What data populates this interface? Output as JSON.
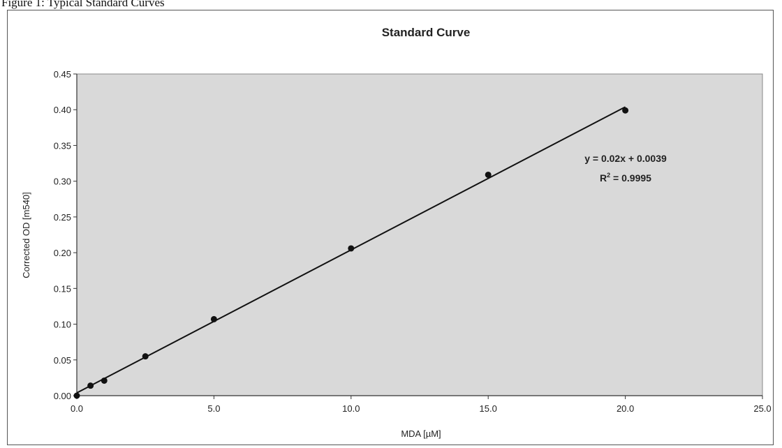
{
  "caption": "Figure 1: Typical Standard Curves",
  "chart_data": {
    "type": "scatter",
    "title": "Standard Curve",
    "xlabel": "MDA [µM]",
    "ylabel": "Corrected OD [m540]",
    "xlim": [
      0,
      25
    ],
    "ylim": [
      0,
      0.45
    ],
    "x_ticks": [
      "0.0",
      "5.0",
      "10.0",
      "15.0",
      "20.0",
      "25.0"
    ],
    "y_ticks": [
      "0.00",
      "0.05",
      "0.10",
      "0.15",
      "0.20",
      "0.25",
      "0.30",
      "0.35",
      "0.40",
      "0.45"
    ],
    "x_tick_values": [
      0,
      5,
      10,
      15,
      20,
      25
    ],
    "y_tick_values": [
      0,
      0.05,
      0.1,
      0.15,
      0.2,
      0.25,
      0.3,
      0.35,
      0.4,
      0.45
    ],
    "series": [
      {
        "x": [
          0,
          0.5,
          1,
          2.5,
          5,
          10,
          15,
          20
        ],
        "y": [
          0.0,
          0.014,
          0.021,
          0.055,
          0.107,
          0.206,
          0.309,
          0.399
        ]
      }
    ],
    "trendline": {
      "slope": 0.02,
      "intercept": 0.0039,
      "x_range": [
        0,
        20
      ],
      "equation": "y = 0.02x + 0.0039",
      "r2_label": "R",
      "r2_sup": "2",
      "r2_value": " = 0.9995"
    },
    "grid": false,
    "legend": "none",
    "plot_background": "#d9d9d9",
    "marker_color": "#111111"
  }
}
